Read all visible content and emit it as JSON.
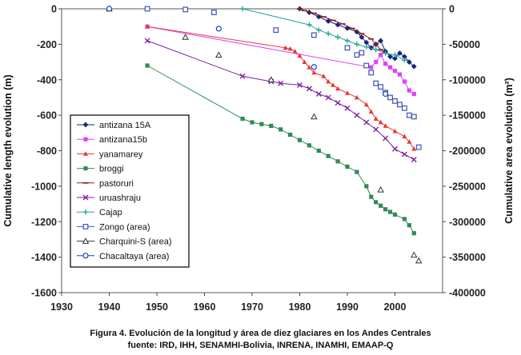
{
  "caption": {
    "line1": "Figura 4. Evolución de la longitud y área de diez glaciares en los Andes Centrales",
    "line2": "fuente: IRD, IHH, SENAMHI-Bolivia, INRENA, INAMHI, EMAAP-Q"
  },
  "chart_data": {
    "type": "scatter",
    "x_axis": {
      "label": "",
      "range": [
        1930,
        2010
      ],
      "ticks": [
        1930,
        1940,
        1950,
        1960,
        1970,
        1980,
        1990,
        2000
      ]
    },
    "y_left": {
      "label": "Cumulative length evolution (m)",
      "range": [
        -1600,
        0
      ],
      "ticks": [
        0,
        -200,
        -400,
        -600,
        -800,
        -1000,
        -1200,
        -1400,
        -1600
      ]
    },
    "y_right": {
      "label": "Cumulative area evolution (m²)",
      "range": [
        -400000,
        0
      ],
      "ticks": [
        0,
        -50000,
        -100000,
        -150000,
        -200000,
        -250000,
        -300000,
        -350000,
        -400000
      ]
    },
    "legend_position": "bottom-left",
    "series": [
      {
        "name": "antizana 15A",
        "axis": "left",
        "color": "#1a237e",
        "marker": "diamond",
        "line": true,
        "points": [
          [
            1980,
            0
          ],
          [
            1982,
            -20
          ],
          [
            1984,
            -45
          ],
          [
            1986,
            -70
          ],
          [
            1988,
            -90
          ],
          [
            1990,
            -110
          ],
          [
            1992,
            -130
          ],
          [
            1993,
            -160
          ],
          [
            1994,
            -190
          ],
          [
            1995,
            -220
          ],
          [
            1996,
            -200
          ],
          [
            1997,
            -180
          ],
          [
            1998,
            -240
          ],
          [
            1999,
            -270
          ],
          [
            2000,
            -280
          ],
          [
            2001,
            -250
          ],
          [
            2002,
            -270
          ],
          [
            2003,
            -300
          ],
          [
            2004,
            -325
          ]
        ]
      },
      {
        "name": "antizana15b",
        "axis": "left",
        "color": "#e040fb",
        "marker": "square",
        "line": true,
        "points": [
          [
            1948,
            -100
          ],
          [
            1995,
            -330
          ],
          [
            1996,
            -300
          ],
          [
            1997,
            -260
          ],
          [
            1998,
            -310
          ],
          [
            1999,
            -330
          ],
          [
            2000,
            -350
          ],
          [
            2001,
            -370
          ],
          [
            2002,
            -410
          ],
          [
            2003,
            -460
          ],
          [
            2004,
            -480
          ]
        ]
      },
      {
        "name": "yanamarey",
        "axis": "left",
        "color": "#e53935",
        "marker": "triangle",
        "line": true,
        "points": [
          [
            1948,
            -100
          ],
          [
            1977,
            -220
          ],
          [
            1978,
            -225
          ],
          [
            1979,
            -240
          ],
          [
            1980,
            -265
          ],
          [
            1981,
            -300
          ],
          [
            1982,
            -330
          ],
          [
            1983,
            -360
          ],
          [
            1985,
            -380
          ],
          [
            1986,
            -410
          ],
          [
            1987,
            -430
          ],
          [
            1988,
            -450
          ],
          [
            1990,
            -475
          ],
          [
            1992,
            -500
          ],
          [
            1994,
            -540
          ],
          [
            1995,
            -580
          ],
          [
            1996,
            -620
          ],
          [
            1997,
            -640
          ],
          [
            1998,
            -660
          ],
          [
            2000,
            -690
          ],
          [
            2002,
            -720
          ],
          [
            2003,
            -750
          ],
          [
            2004,
            -790
          ]
        ]
      },
      {
        "name": "broggi",
        "axis": "left",
        "color": "#2e8b57",
        "marker": "square",
        "line": true,
        "points": [
          [
            1948,
            -320
          ],
          [
            1968,
            -620
          ],
          [
            1970,
            -640
          ],
          [
            1972,
            -650
          ],
          [
            1974,
            -660
          ],
          [
            1976,
            -680
          ],
          [
            1978,
            -710
          ],
          [
            1980,
            -740
          ],
          [
            1982,
            -770
          ],
          [
            1984,
            -800
          ],
          [
            1986,
            -830
          ],
          [
            1988,
            -860
          ],
          [
            1990,
            -890
          ],
          [
            1992,
            -920
          ],
          [
            1994,
            -1000
          ],
          [
            1995,
            -1060
          ],
          [
            1996,
            -1090
          ],
          [
            1997,
            -1110
          ],
          [
            1998,
            -1130
          ],
          [
            1999,
            -1145
          ],
          [
            2000,
            -1160
          ],
          [
            2002,
            -1185
          ],
          [
            2003,
            -1220
          ],
          [
            2004,
            -1265
          ]
        ]
      },
      {
        "name": "pastoruri",
        "axis": "left",
        "color": "#8b1a1a",
        "marker": "dash",
        "line": true,
        "points": [
          [
            1980,
            0
          ],
          [
            1981,
            -10
          ],
          [
            1983,
            -25
          ],
          [
            1985,
            -45
          ],
          [
            1987,
            -65
          ],
          [
            1989,
            -85
          ],
          [
            1991,
            -110
          ],
          [
            1993,
            -140
          ],
          [
            1995,
            -170
          ],
          [
            1996,
            -200
          ],
          [
            1997,
            -230
          ],
          [
            1998,
            -250
          ]
        ]
      },
      {
        "name": "uruashraju",
        "axis": "left",
        "color": "#7b1fa2",
        "marker": "x",
        "line": true,
        "points": [
          [
            1948,
            -180
          ],
          [
            1968,
            -380
          ],
          [
            1974,
            -410
          ],
          [
            1976,
            -420
          ],
          [
            1980,
            -430
          ],
          [
            1982,
            -450
          ],
          [
            1984,
            -480
          ],
          [
            1986,
            -500
          ],
          [
            1988,
            -530
          ],
          [
            1990,
            -560
          ],
          [
            1992,
            -600
          ],
          [
            1994,
            -640
          ],
          [
            1996,
            -680
          ],
          [
            1998,
            -730
          ],
          [
            2000,
            -790
          ],
          [
            2002,
            -820
          ],
          [
            2004,
            -850
          ]
        ]
      },
      {
        "name": "Cajap",
        "axis": "left",
        "color": "#26a69a",
        "marker": "plus",
        "line": true,
        "points": [
          [
            1968,
            0
          ],
          [
            1982,
            -90
          ],
          [
            1984,
            -120
          ],
          [
            1986,
            -140
          ],
          [
            1988,
            -160
          ],
          [
            1990,
            -180
          ],
          [
            1992,
            -200
          ],
          [
            1994,
            -215
          ],
          [
            1996,
            -230
          ],
          [
            1998,
            -250
          ],
          [
            2000,
            -260
          ],
          [
            2002,
            -290
          ]
        ]
      },
      {
        "name": "Zongo (area)",
        "axis": "right",
        "color": "#3f51b5",
        "marker": "square-open",
        "line": false,
        "points": [
          [
            1948,
            0
          ],
          [
            1956,
            -1000
          ],
          [
            1962,
            -5000
          ],
          [
            1975,
            -30000
          ],
          [
            1983,
            -37000
          ],
          [
            1990,
            -55000
          ],
          [
            1992,
            -65000
          ],
          [
            1993,
            -62000
          ],
          [
            1994,
            -80000
          ],
          [
            1995,
            -90000
          ],
          [
            1996,
            -105000
          ],
          [
            1997,
            -110000
          ],
          [
            1998,
            -118000
          ],
          [
            1999,
            -125000
          ],
          [
            2000,
            -130000
          ],
          [
            2001,
            -135000
          ],
          [
            2002,
            -140000
          ],
          [
            2003,
            -150000
          ],
          [
            2004,
            -152000
          ],
          [
            2005,
            -195000
          ]
        ]
      },
      {
        "name": "Charquini-S (area)",
        "axis": "right",
        "color": "#333333",
        "marker": "triangle-open",
        "line": false,
        "points": [
          [
            1940,
            0
          ],
          [
            1956,
            -40000
          ],
          [
            1963,
            -65000
          ],
          [
            1974,
            -100000
          ],
          [
            1983,
            -152000
          ],
          [
            1997,
            -255000
          ],
          [
            2004,
            -347000
          ],
          [
            2005,
            -355000
          ]
        ]
      },
      {
        "name": "Chacaltaya (area)",
        "axis": "right",
        "color": "#1e3fbf",
        "marker": "circle-open",
        "line": false,
        "points": [
          [
            1940,
            0
          ],
          [
            1963,
            -28000
          ],
          [
            1983,
            -82000
          ],
          [
            1998,
            -120000
          ]
        ]
      }
    ]
  }
}
